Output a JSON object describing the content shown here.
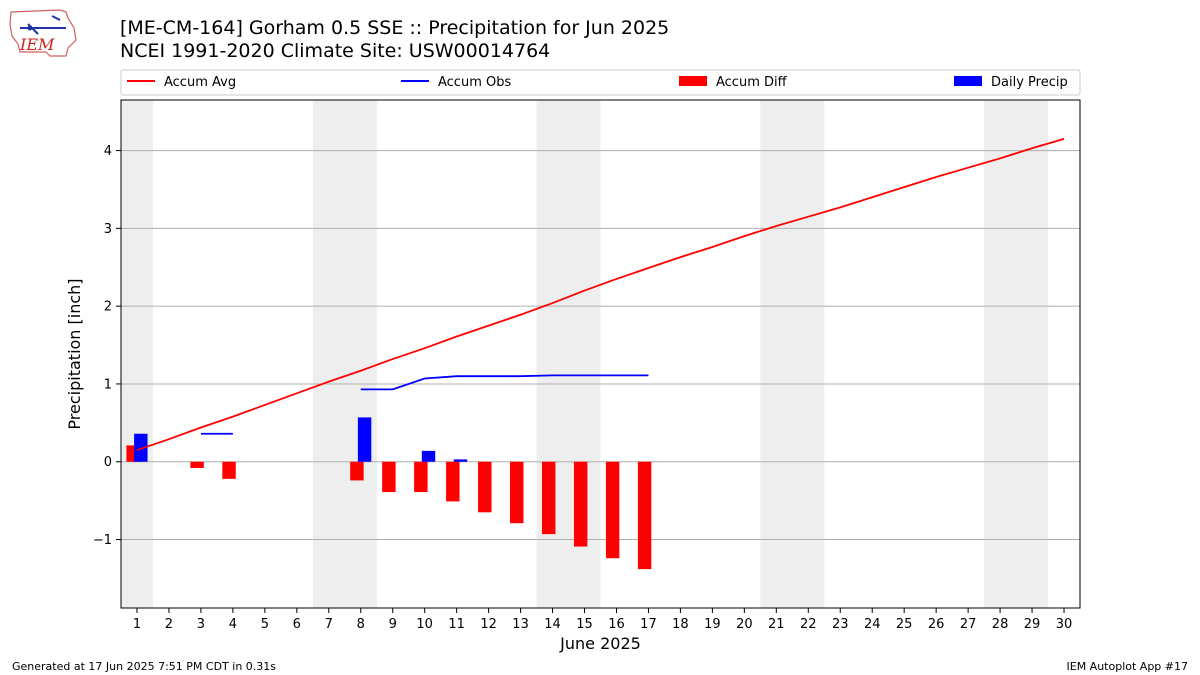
{
  "header": {
    "logo_text": "IEM",
    "title": "[ME-CM-164] Gorham 0.5 SSE :: Precipitation for Jun 2025",
    "subtitle": "NCEI 1991-2020 Climate Site: USW00014764"
  },
  "footer": {
    "generated": "Generated at 17 Jun 2025 7:51 PM CDT in 0.31s",
    "app": "IEM Autoplot App #17"
  },
  "chart_data": {
    "type": "bar",
    "xlabel": "June 2025",
    "ylabel": "Precipitation [inch]",
    "xlim": [
      0.5,
      30.5
    ],
    "ylim": [
      -1.88,
      4.65
    ],
    "yticks": [
      -1,
      0,
      1,
      2,
      3,
      4
    ],
    "ytick_labels": [
      "−1",
      "0",
      "1",
      "2",
      "3",
      "4"
    ],
    "x": [
      1,
      2,
      3,
      4,
      5,
      6,
      7,
      8,
      9,
      10,
      11,
      12,
      13,
      14,
      15,
      16,
      17,
      18,
      19,
      20,
      21,
      22,
      23,
      24,
      25,
      26,
      27,
      28,
      29,
      30
    ],
    "weekend_spans": [
      [
        0.5,
        1.5
      ],
      [
        6.5,
        8.5
      ],
      [
        13.5,
        15.5
      ],
      [
        20.5,
        22.5
      ],
      [
        27.5,
        29.5
      ]
    ],
    "grid": "horizontal",
    "legend_placement": "top, above plot",
    "series": [
      {
        "name": "Accum Avg",
        "kind": "line",
        "color": "#ff0000",
        "x": [
          1,
          2,
          3,
          4,
          5,
          6,
          7,
          8,
          9,
          10,
          11,
          12,
          13,
          14,
          15,
          16,
          17,
          18,
          19,
          20,
          21,
          22,
          23,
          24,
          25,
          26,
          27,
          28,
          29,
          30
        ],
        "values": [
          0.15,
          0.29,
          0.44,
          0.58,
          0.73,
          0.88,
          1.03,
          1.17,
          1.32,
          1.46,
          1.61,
          1.75,
          1.89,
          2.04,
          2.2,
          2.35,
          2.49,
          2.63,
          2.76,
          2.9,
          3.03,
          3.15,
          3.27,
          3.4,
          3.53,
          3.66,
          3.78,
          3.9,
          4.03,
          4.15
        ]
      },
      {
        "name": "Accum Obs",
        "kind": "line",
        "color": "#0000ff",
        "segments": [
          {
            "x": [
              3,
              4
            ],
            "values": [
              0.36,
              0.36
            ]
          },
          {
            "x": [
              8,
              9,
              10,
              11,
              12,
              13,
              14,
              15,
              16,
              17
            ],
            "values": [
              0.93,
              0.93,
              1.07,
              1.1,
              1.1,
              1.1,
              1.11,
              1.11,
              1.11,
              1.11
            ]
          }
        ]
      },
      {
        "name": "Accum Diff",
        "kind": "bar",
        "color": "#ff0000",
        "x": [
          1,
          3,
          4,
          8,
          9,
          10,
          11,
          12,
          13,
          14,
          15,
          16,
          17
        ],
        "values": [
          0.21,
          -0.08,
          -0.22,
          -0.24,
          -0.39,
          -0.39,
          -0.51,
          -0.65,
          -0.79,
          -0.93,
          -1.09,
          -1.24,
          -1.38
        ]
      },
      {
        "name": "Daily Precip",
        "kind": "bar",
        "color": "#0000ff",
        "x": [
          1,
          8,
          10,
          11
        ],
        "values": [
          0.36,
          0.57,
          0.14,
          0.03
        ]
      }
    ]
  }
}
